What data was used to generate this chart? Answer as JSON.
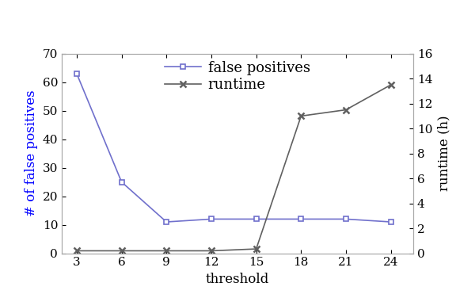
{
  "threshold": [
    3,
    6,
    9,
    12,
    15,
    18,
    21,
    24
  ],
  "false_positives": [
    63,
    25,
    11,
    12,
    12,
    12,
    12,
    11
  ],
  "runtime_h": [
    0.2,
    0.2,
    0.2,
    0.2,
    0.35,
    11.0,
    11.5,
    13.5
  ],
  "fp_color": "#7070cc",
  "rt_color": "#606060",
  "fp_label": "false positives",
  "rt_label": "runtime",
  "xlabel": "threshold",
  "ylabel_left": "# of false positives",
  "ylabel_right": "runtime (h)",
  "xlim": [
    2.0,
    25.5
  ],
  "ylim_left": [
    0,
    70
  ],
  "ylim_right": [
    0,
    16
  ],
  "left_yticks": [
    0,
    10,
    20,
    30,
    40,
    50,
    60,
    70
  ],
  "right_yticks": [
    0,
    2,
    4,
    6,
    8,
    10,
    12,
    14,
    16
  ],
  "xticks": [
    3,
    6,
    9,
    12,
    15,
    18,
    21,
    24
  ],
  "bg_color": "#ffffff",
  "spine_color": "#aaaaaa",
  "ylabel_left_color": "#0000ff",
  "fontsize_labels": 12,
  "fontsize_ticks": 11,
  "fontsize_legend": 13
}
